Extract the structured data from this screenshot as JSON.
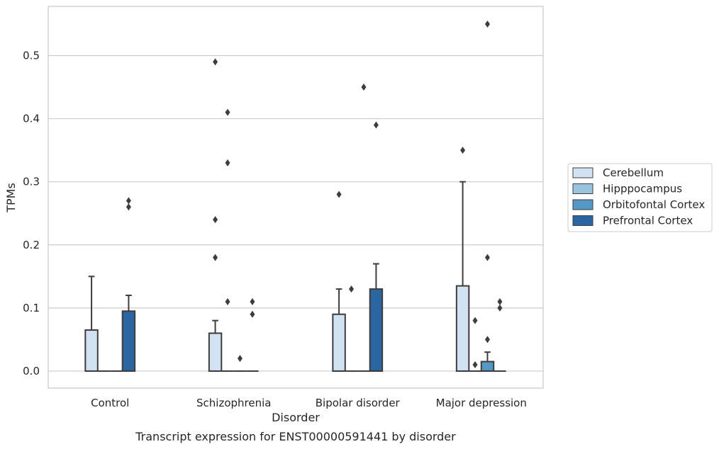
{
  "chart_data": {
    "type": "box",
    "caption": "Transcript expression for ENST00000591441 by disorder",
    "xlabel": "Disorder",
    "ylabel": "TPMs",
    "ylim": [
      -0.027,
      0.578
    ],
    "yticks": [
      0.0,
      0.1,
      0.2,
      0.3,
      0.4,
      0.5
    ],
    "ytick_labels": [
      "0.0",
      "0.1",
      "0.2",
      "0.3",
      "0.4",
      "0.5"
    ],
    "grid": "horizontal",
    "legend_position": "right",
    "categories": [
      "Control",
      "Schizophrenia",
      "Bipolar disorder",
      "Major depression"
    ],
    "series": [
      {
        "name": "Cerebellum",
        "color": "#d3e2f2",
        "boxes": [
          {
            "q1": 0.0,
            "median": 0.0,
            "q3": 0.065,
            "whisker_low": 0.0,
            "whisker_high": 0.15,
            "outliers": []
          },
          {
            "q1": 0.0,
            "median": 0.0,
            "q3": 0.06,
            "whisker_low": 0.0,
            "whisker_high": 0.08,
            "outliers": [
              0.18,
              0.24,
              0.49
            ]
          },
          {
            "q1": 0.0,
            "median": 0.0,
            "q3": 0.09,
            "whisker_low": 0.0,
            "whisker_high": 0.13,
            "outliers": [
              0.28
            ]
          },
          {
            "q1": 0.0,
            "median": 0.0,
            "q3": 0.135,
            "whisker_low": 0.0,
            "whisker_high": 0.3,
            "outliers": [
              0.35
            ]
          }
        ]
      },
      {
        "name": "Hipppocampus",
        "color": "#9ac3df",
        "boxes": [
          {
            "q1": 0.0,
            "median": 0.0,
            "q3": 0.0,
            "whisker_low": 0.0,
            "whisker_high": 0.0,
            "outliers": []
          },
          {
            "q1": 0.0,
            "median": 0.0,
            "q3": 0.0,
            "whisker_low": 0.0,
            "whisker_high": 0.0,
            "outliers": [
              0.11,
              0.33,
              0.41
            ]
          },
          {
            "q1": 0.0,
            "median": 0.0,
            "q3": 0.0,
            "whisker_low": 0.0,
            "whisker_high": 0.0,
            "outliers": [
              0.13
            ]
          },
          {
            "q1": 0.0,
            "median": 0.0,
            "q3": 0.0,
            "whisker_low": 0.0,
            "whisker_high": 0.0,
            "outliers": [
              0.01,
              0.08
            ]
          }
        ]
      },
      {
        "name": "Orbitofontal Cortex",
        "color": "#5598c6",
        "boxes": [
          {
            "q1": 0.0,
            "median": 0.0,
            "q3": 0.0,
            "whisker_low": 0.0,
            "whisker_high": 0.0,
            "outliers": []
          },
          {
            "q1": 0.0,
            "median": 0.0,
            "q3": 0.0,
            "whisker_low": 0.0,
            "whisker_high": 0.0,
            "outliers": [
              0.02
            ]
          },
          {
            "q1": 0.0,
            "median": 0.0,
            "q3": 0.0,
            "whisker_low": 0.0,
            "whisker_high": 0.0,
            "outliers": [
              0.45
            ]
          },
          {
            "q1": 0.0,
            "median": 0.0,
            "q3": 0.015,
            "whisker_low": 0.0,
            "whisker_high": 0.03,
            "outliers": [
              0.05,
              0.18,
              0.55
            ]
          }
        ]
      },
      {
        "name": "Prefrontal Cortex",
        "color": "#2a66a1",
        "boxes": [
          {
            "q1": 0.0,
            "median": 0.0,
            "q3": 0.095,
            "whisker_low": 0.0,
            "whisker_high": 0.12,
            "outliers": [
              0.26,
              0.27
            ]
          },
          {
            "q1": 0.0,
            "median": 0.0,
            "q3": 0.0,
            "whisker_low": 0.0,
            "whisker_high": 0.0,
            "outliers": [
              0.09,
              0.11
            ]
          },
          {
            "q1": 0.0,
            "median": 0.0,
            "q3": 0.13,
            "whisker_low": 0.0,
            "whisker_high": 0.17,
            "outliers": [
              0.39
            ]
          },
          {
            "q1": 0.0,
            "median": 0.0,
            "q3": 0.0,
            "whisker_low": 0.0,
            "whisker_high": 0.0,
            "outliers": [
              0.1,
              0.11
            ]
          }
        ]
      }
    ]
  }
}
